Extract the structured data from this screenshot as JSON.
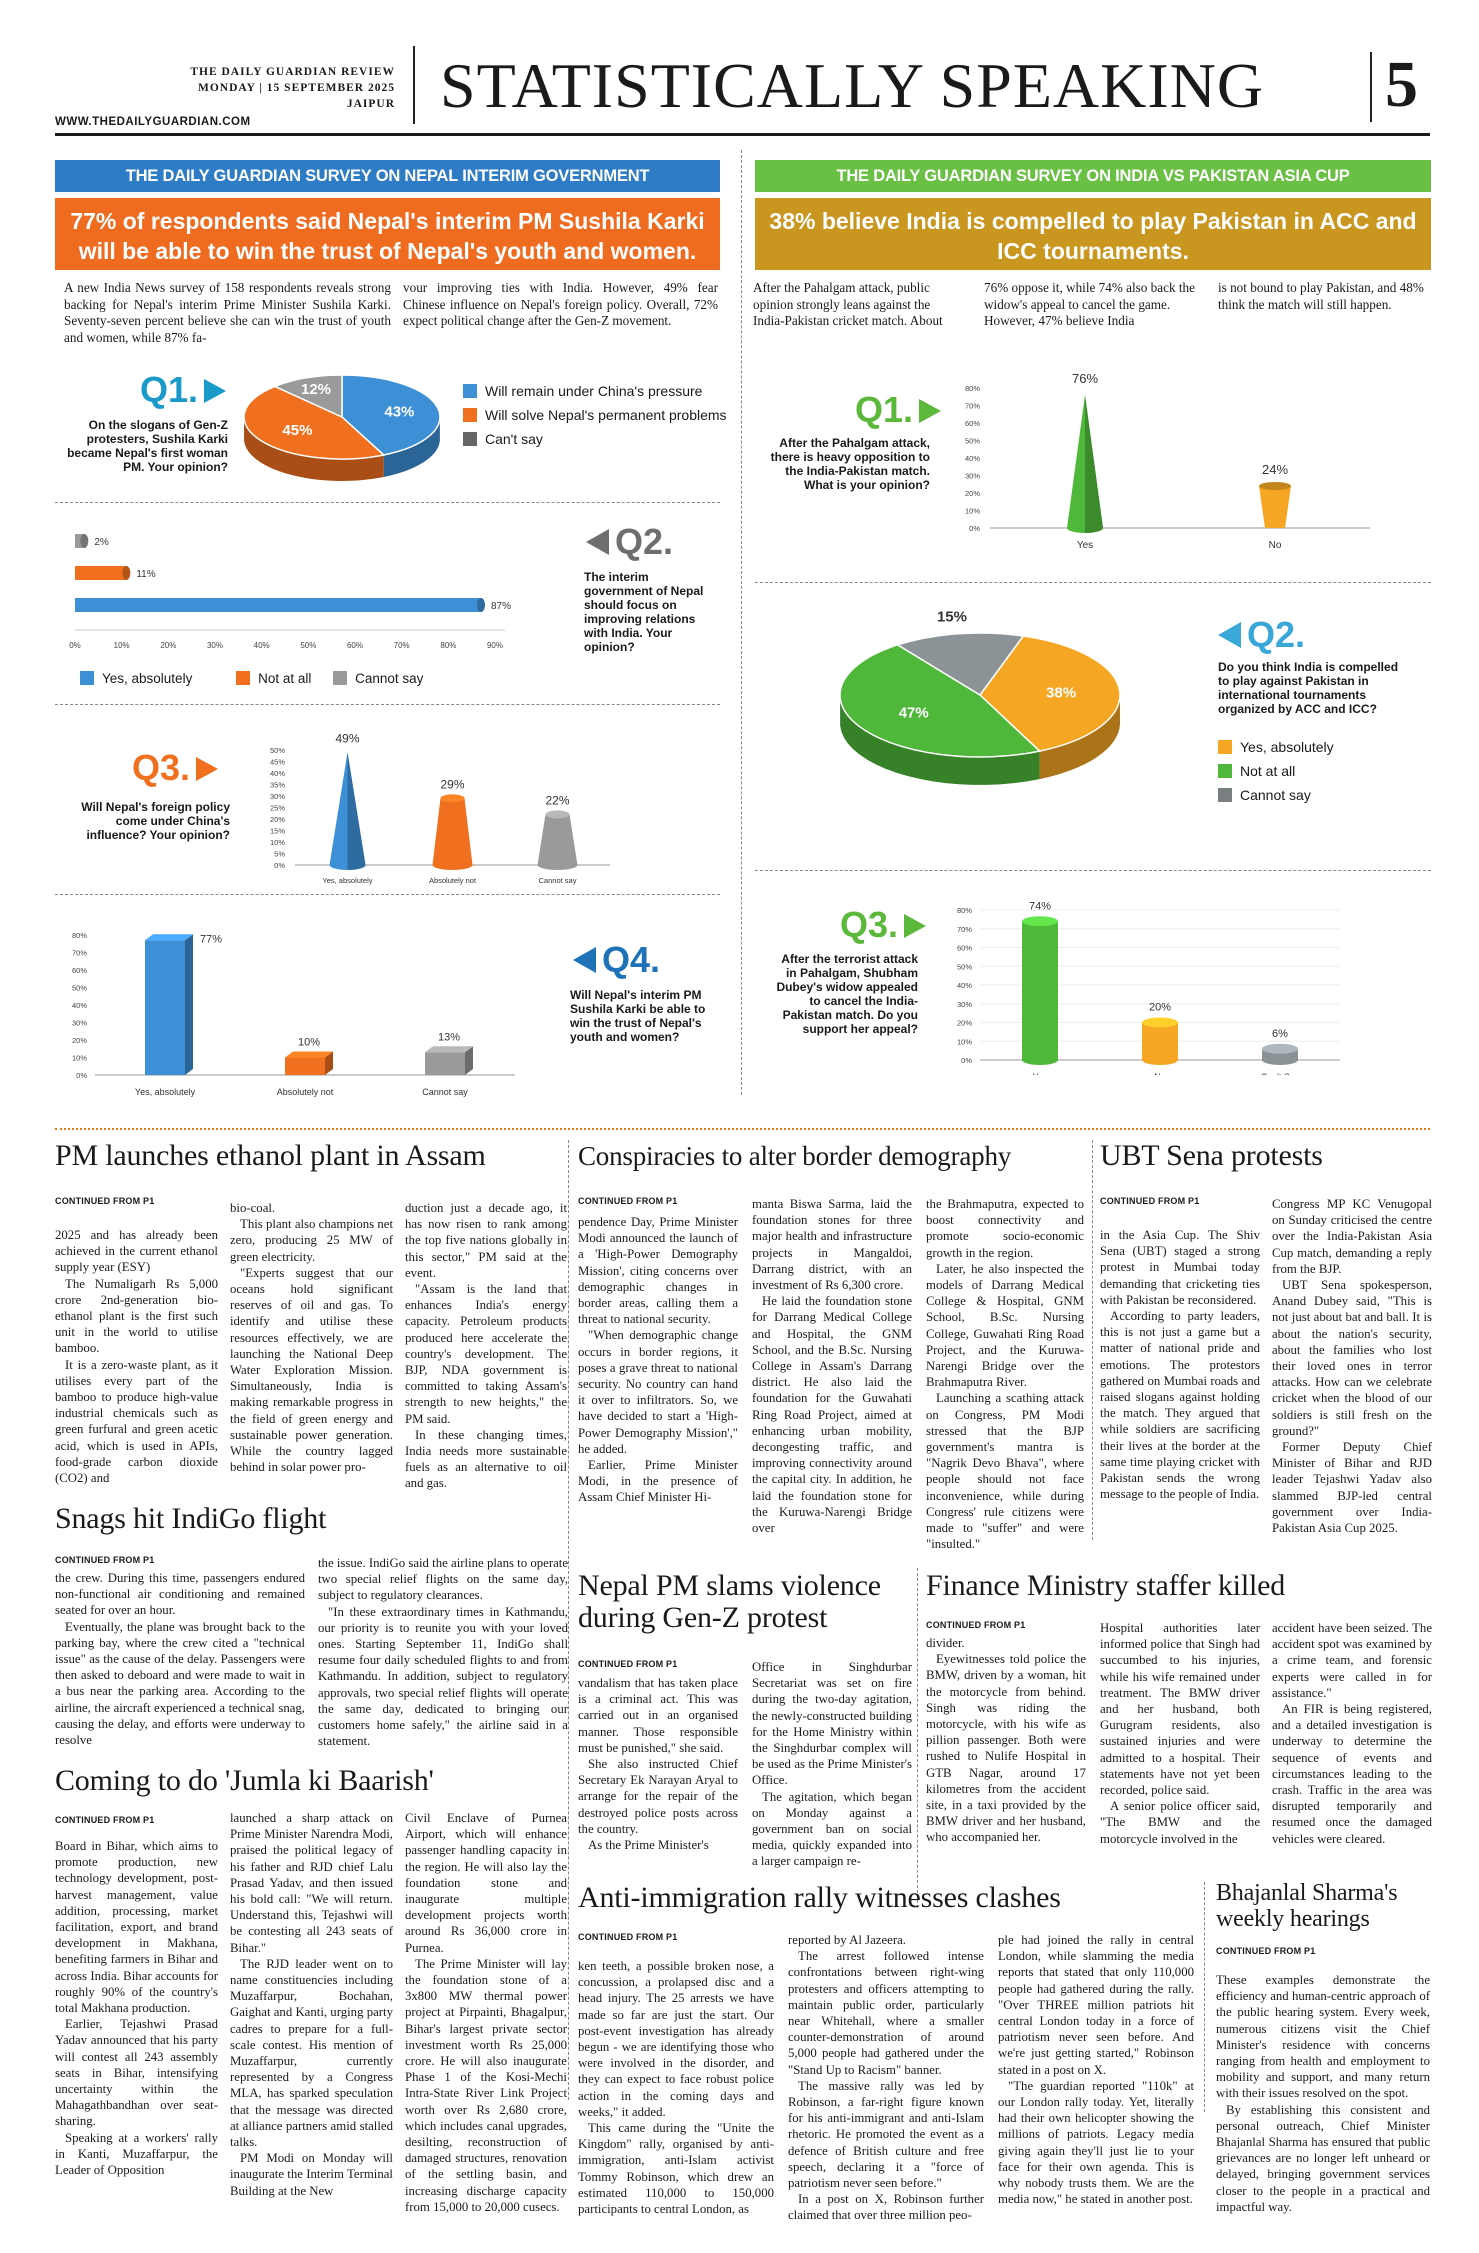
{
  "masthead": {
    "paper": "THE DAILY GUARDIAN REVIEW",
    "date": "MONDAY | 15 SEPTEMBER 2025",
    "city": "JAIPUR",
    "url": "WWW.THEDAILYGUARDIAN.COM",
    "section": "STATISTICALLY SPEAKING",
    "page": "5"
  },
  "nepal": {
    "banner": "THE DAILY GUARDIAN SURVEY ON NEPAL INTERIM GOVERNMENT",
    "headline": "77% of respondents said Nepal's interim PM Sushila Karki will be able to win the trust of Nepal's youth and women.",
    "intro_a": "A new India News survey of 158 respondents reveals strong backing for Nepal's interim Prime Minister Sushila Karki. Seventy-seven percent believe she can win the trust of youth and women, while 87% fa-",
    "intro_b": "vour improving ties with India. However, 49% fear Chinese influence on Nepal's foreign policy. Overall, 72% expect political change after the Gen-Z movement.",
    "colors": {
      "blue": "#3d8fd6",
      "orange": "#f07020",
      "gray": "#9a9a9a",
      "banner": "#2e7bc6",
      "headline": "#ef6b1f"
    },
    "q1": {
      "num": "Q1.",
      "text": "On the slogans of Gen-Z protesters, Sushila Karki became Nepal's first woman PM. Your opinion?",
      "legend": [
        "Will remain under China's pressure",
        "Will solve Nepal's permanent problems",
        "Can't say"
      ],
      "values": [
        43,
        45,
        12
      ],
      "labels": [
        "43%",
        "45%",
        "12%"
      ]
    },
    "q2": {
      "num": "Q2.",
      "text": "The interim government of Nepal should focus on improving relations with India. Your opinion?",
      "legend": [
        "Yes, absolutely",
        "Not at all",
        "Cannot say"
      ],
      "values": [
        87,
        11,
        2
      ],
      "labels": [
        "87%",
        "11%",
        "2%"
      ],
      "ticks": [
        "0%",
        "10%",
        "20%",
        "30%",
        "40%",
        "50%",
        "60%",
        "70%",
        "80%",
        "90%"
      ]
    },
    "q3": {
      "num": "Q3.",
      "text": "Will Nepal's foreign policy come under China's influence? Your opinion?",
      "categories": [
        "Yes, absolutely",
        "Absolutely not",
        "Cannot say"
      ],
      "values": [
        49,
        29,
        22
      ],
      "labels": [
        "49%",
        "29%",
        "22%"
      ],
      "ticks": [
        "50%",
        "45%",
        "40%",
        "35%",
        "30%",
        "25%",
        "20%",
        "15%",
        "10%",
        "5%",
        "0%"
      ]
    },
    "q4": {
      "num": "Q4.",
      "text": "Will Nepal's interim PM Sushila Karki be able to win the trust of Nepal's youth and women?",
      "categories": [
        "Yes, absolutely",
        "Absolutely not",
        "Cannot say"
      ],
      "values": [
        77,
        10,
        13
      ],
      "labels": [
        "77%",
        "10%",
        "13%"
      ],
      "ticks": [
        "80%",
        "70%",
        "60%",
        "50%",
        "40%",
        "30%",
        "20%",
        "10%",
        "0%"
      ]
    }
  },
  "india": {
    "banner": "THE DAILY GUARDIAN SURVEY ON INDIA VS PAKISTAN ASIA CUP",
    "headline": "38% believe India is compelled to play Pakistan in ACC and ICC tournaments.",
    "intro_a": "After the Pahalgam attack, public opinion strongly leans against the India-Pakistan cricket match. About",
    "intro_b": "76% oppose it, while 74% also back the widow's appeal to cancel the game. However, 47% believe India",
    "intro_c": "is not bound to play Pakistan, and 48% think the match will still happen.",
    "colors": {
      "green": "#4fb83a",
      "yellow": "#f5a623",
      "gray": "#8c9396",
      "banner": "#6abf45",
      "headline": "#c9961f"
    },
    "q1": {
      "num": "Q1.",
      "text": "After the Pahalgam attack, there is heavy opposition to the India-Pakistan match. What is your opinion?",
      "categories": [
        "Yes",
        "No"
      ],
      "values": [
        76,
        24
      ],
      "labels": [
        "76%",
        "24%"
      ],
      "ticks": [
        "80%",
        "70%",
        "60%",
        "50%",
        "40%",
        "30%",
        "20%",
        "10%",
        "0%"
      ]
    },
    "q2": {
      "num": "Q2.",
      "text": "Do you think India is compelled to play against Pakistan in international tournaments organized by ACC and ICC?",
      "legend": [
        "Yes, absolutely",
        "Not at all",
        "Cannot say"
      ],
      "values": [
        38,
        47,
        15
      ],
      "labels": [
        "38%",
        "47%",
        "15%"
      ]
    },
    "q3": {
      "num": "Q3.",
      "text": "After the terrorist attack in Pahalgam, Shubham Dubey's widow appealed to cancel the India-Pakistan match. Do you support her appeal?",
      "categories": [
        "Yes",
        "No",
        "Can't Say"
      ],
      "values": [
        74,
        20,
        6
      ],
      "labels": [
        "74%",
        "20%",
        "6%"
      ],
      "ticks": [
        "80%",
        "70%",
        "60%",
        "50%",
        "40%",
        "30%",
        "20%",
        "10%",
        "0%"
      ]
    }
  },
  "stories": {
    "cont": "CONTINUED FROM P1",
    "ethanol": {
      "title": "PM launches ethanol plant in Assam",
      "c1": [
        "2025 and has already been achieved in the current ethanol supply year (ESY)",
        "The Numaligarh Rs 5,000 crore 2nd-generation bio-ethanol plant is the first such unit in the world to utilise bamboo.",
        "It is a zero-waste plant, as it utilises every part of the bamboo to produce high-value industrial chemicals such as green furfural and green acetic acid, which is used in APIs, food-grade carbon dioxide (CO2) and"
      ],
      "c2": [
        "bio-coal.",
        "This plant also champions net zero, producing 25 MW of green electricity.",
        "\"Experts suggest that our oceans hold significant reserves of oil and gas. To identify and utilise these resources effectively, we are launching the National Deep Water Exploration Mission. Simultaneously, India is making remarkable progress in the field of green energy and sustainable power generation. While the country lagged behind in solar power pro-"
      ],
      "c3": [
        "duction just a decade ago, it has now risen to rank among the top five nations globally in this sector,\" PM said at the event.",
        "\"Assam is the land that enhances India's energy capacity. Petroleum products produced here accelerate the country's development. The BJP, NDA government is committed to taking Assam's strength to new heights,\" the PM said.",
        "In these changing times, India needs more sustainable fuels as an alternative to oil and gas."
      ]
    },
    "conspiracy": {
      "title": "Conspiracies to alter border demography",
      "c1": [
        "pendence Day, Prime Minister Modi announced the launch of a 'High-Power Demography Mission', citing concerns over demographic changes in border areas, calling them a threat to national security.",
        "\"When demographic change occurs in border regions, it poses a grave threat to national security. No country can hand it over to infiltrators. So, we have decided to start a 'High-Power Demography Mission',\" he added.",
        "Earlier, Prime Minister Modi, in the presence of Assam Chief Minister Hi-"
      ],
      "c2": [
        "manta Biswa Sarma, laid the foundation stones for three major health and infrastructure projects in Mangaldoi, Darrang district, with an investment of Rs 6,300 crore.",
        "He laid the foundation stone for Darrang Medical College and Hospital, the GNM School, and the B.Sc. Nursing College in Assam's Darrang district. He also laid the foundation for the Guwahati Ring Road Project, aimed at enhancing urban mobility, decongesting traffic, and improving connectivity around the capital city. In addition, he laid the foundation stone for the Kuruwa-Narengi Bridge over"
      ],
      "c3": [
        "the Brahmaputra, expected to boost connectivity and promote socio-economic growth in the region.",
        "Later, he also inspected the models of Darrang Medical College & Hospital, GNM School, B.Sc. Nursing College, Guwahati Ring Road Project, and the Kuruwa-Narengi Bridge over the Brahmaputra River.",
        "Launching a scathing attack on Congress, PM Modi stressed that the BJP government's mantra is \"Nagrik Devo Bhava\", where people should not face inconvenience, while during Congress' rule citizens were made to \"suffer\" and were \"insulted.\""
      ]
    },
    "ubt": {
      "title": "UBT Sena protests",
      "c1": [
        "in the Asia Cup. The Shiv Sena (UBT) staged a strong protest in Mumbai today demanding that cricketing ties with Pakistan be reconsidered.",
        "According to party leaders, this is not just a game but a matter of national pride and emotions. The protestors gathered on Mumbai roads and raised slogans against holding the match. They argued that while soldiers are sacrificing their lives at the border at the same time playing cricket with Pakistan sends the wrong message to the people of India."
      ],
      "c2": [
        "Congress MP KC Venugopal on Sunday criticised the centre over the India-Pakistan Asia Cup match, demanding a reply from the BJP.",
        "UBT Sena spokesperson, Anand Dubey said, \"This is not just about bat and ball. It is about the nation's security, about the families who lost their loved ones in terror attacks. How can we celebrate cricket when the blood of our soldiers is still fresh on the ground?\"",
        "Former Deputy Chief Minister of Bihar and RJD leader Tejashwi Yadav also slammed BJP-led central government over India-Pakistan Asia Cup 2025."
      ]
    },
    "indigo": {
      "title": "Snags hit IndiGo flight",
      "c1": [
        "the crew. During this time, passengers endured non-functional air conditioning and remained seated for over an hour.",
        "Eventually, the plane was brought back to the parking bay, where the crew cited a \"technical issue\" as the cause of the delay. Passengers were then asked to deboard and were made to wait in a bus near the parking area. According to the airline, the aircraft experienced a technical snag, causing the delay, and efforts were underway to resolve"
      ],
      "c2": [
        "the issue. IndiGo said the airline plans to operate two special relief flights on the same day, subject to regulatory clearances.",
        "\"In these extraordinary times in Kathmandu, our priority is to reunite you with your loved ones. Starting September 11, IndiGo shall resume four daily scheduled flights to and from Kathmandu. In addition, subject to regulatory approvals, two special relief flights will operate the same day, dedicated to bringing our customers home safely,\" the airline said in a statement."
      ]
    },
    "nepalpm": {
      "title": "Nepal PM slams violence during Gen-Z protest",
      "c1": [
        "vandalism that has taken place is a criminal act. This was carried out in an organised manner. Those responsible must be punished,\" she said.",
        "She also instructed Chief Secretary Ek Narayan Aryal to arrange for the repair of the destroyed police posts across the country.",
        "As the Prime Minister's"
      ],
      "c2": [
        "Office in Singhdurbar Secretariat was set on fire during the two-day agitation, the newly-constructed building for the Home Ministry within the Singhdurbar complex will be used as the Prime Minister's Office.",
        "The agitation, which began on Monday against a government ban on social media, quickly expanded into a larger campaign re-"
      ]
    },
    "finance": {
      "title": "Finance Ministry staffer killed",
      "c1": [
        "divider.",
        "Eyewitnesses told police the BMW, driven by a woman, hit the motorcycle from behind. Singh was riding the motorcycle, with his wife as pillion passenger. Both were rushed to Nulife Hospital in GTB Nagar, around 17 kilometres from the accident site, in a taxi provided by the BMW driver and her husband, who accompanied her."
      ],
      "c2": [
        "Hospital authorities later informed police that Singh had succumbed to his injuries, while his wife remained under treatment. The BMW driver and her husband, both Gurugram residents, also sustained injuries and were admitted to a hospital. Their statements have not yet been recorded, police said.",
        "A senior police officer said, \"The BMW and the motorcycle involved in the"
      ],
      "c3": [
        "accident have been seized. The accident spot was examined by a crime team, and forensic experts were called in for assistance.\"",
        "An FIR is being registered, and a detailed investigation is underway to determine the sequence of events and circumstances leading to the crash. Traffic in the area was disrupted temporarily and resumed once the damaged vehicles were cleared."
      ]
    },
    "jumla": {
      "title": "Coming to do 'Jumla ki Baarish'",
      "c1": [
        "Board in Bihar, which aims to promote production, new technology development, post-harvest management, value addition, processing, market facilitation, export, and brand development in Makhana, benefiting farmers in Bihar and across India. Bihar accounts for roughly 90% of the country's total Makhana production.",
        "Earlier, Tejashwi Prasad Yadav announced that his party will contest all 243 assembly seats in Bihar, intensifying uncertainty within the Mahagathbandhan over seat-sharing.",
        "Speaking at a workers' rally in Kanti, Muzaffarpur, the Leader of Opposition"
      ],
      "c2": [
        "launched a sharp attack on Prime Minister Narendra Modi, praised the political legacy of his father and RJD chief Lalu Prasad Yadav, and then issued his bold call: \"We will return. Understand this, Tejashwi will be contesting all 243 seats of Bihar.\"",
        "The RJD leader went on to name constituencies including Muzaffarpur, Bochahan, Gaighat and Kanti, urging party cadres to prepare for a full-scale contest. His mention of Muzaffarpur, currently represented by a Congress MLA, has sparked speculation that the message was directed at alliance partners amid stalled talks.",
        "PM Modi on Monday will inaugurate the Interim Terminal Building at the New"
      ],
      "c3": [
        "Civil Enclave of Purnea Airport, which will enhance passenger handling capacity in the region. He will also lay the foundation stone and inaugurate multiple development projects worth around Rs 36,000 crore in Purnea.",
        "The Prime Minister will lay the foundation stone of a 3x800 MW thermal power project at Pirpainti, Bhagalpur, Bihar's largest private sector investment worth Rs 25,000 crore. He will also inaugurate Phase 1 of the Kosi-Mechi Intra-State River Link Project worth over Rs 2,680 crore, which includes canal upgrades, desilting, reconstruction of damaged structures, renovation of the settling basin, and increasing discharge capacity from 15,000 to 20,000 cusecs."
      ]
    },
    "antiimm": {
      "title": "Anti-immigration rally witnesses clashes",
      "c1": [
        "ken teeth, a possible broken nose, a concussion, a prolapsed disc and a head injury. The 25 arrests we have made so far are just the start. Our post-event investigation has already begun - we are identifying those who were involved in the disorder, and they can expect to face robust police action in the coming days and weeks,\" it added.",
        "This came during the \"Unite the Kingdom\" rally, organised by anti-immigration, anti-Islam activist Tommy Robinson, which drew an estimated 110,000 to 150,000 participants to central London, as"
      ],
      "c2": [
        "reported by Al Jazeera.",
        "The arrest followed intense confrontations between right-wing protesters and officers attempting to maintain public order, particularly near Whitehall, where a smaller counter-demonstration of around 5,000 people had gathered under the \"Stand Up to Racism\" banner.",
        "The massive rally was led by Robinson, a far-right figure known for his anti-immigrant and anti-Islam rhetoric. He promoted the event as a defence of British culture and free speech, declaring it a \"force of patriotism never seen before.\"",
        "In a post on X, Robinson further claimed that over three million peo-"
      ],
      "c3": [
        "ple had joined the rally in central London, while slamming the media reports that stated that only 110,000 people had gathered during the rally. \"Over THREE million patriots hit central London today in a force of patriotism never seen before. And we're just getting started,\" Robinson stated in a post on X.",
        "\"The guardian reported \"110k\" at our London rally today. Yet, literally had their own helicopter showing the millions of patriots. Legacy media giving again they'll just lie to your face for their own agenda. This is why nobody trusts them. We are the media now,\" he stated in another post."
      ]
    },
    "bhajan": {
      "title": "Bhajanlal Sharma's weekly hearings",
      "c1": [
        "These examples demonstrate the efficiency and human-centric approach of the public hearing system. Every week, numerous citizens visit the Chief Minister's residence with concerns ranging from health and employment to mobility and support, and many return with their issues resolved on the spot.",
        "By establishing this consistent and personal outreach, Chief Minister Bhajanlal Sharma has ensured that public grievances are no longer left unheard or delayed, bringing government services closer to the people in a practical and impactful way."
      ]
    }
  }
}
